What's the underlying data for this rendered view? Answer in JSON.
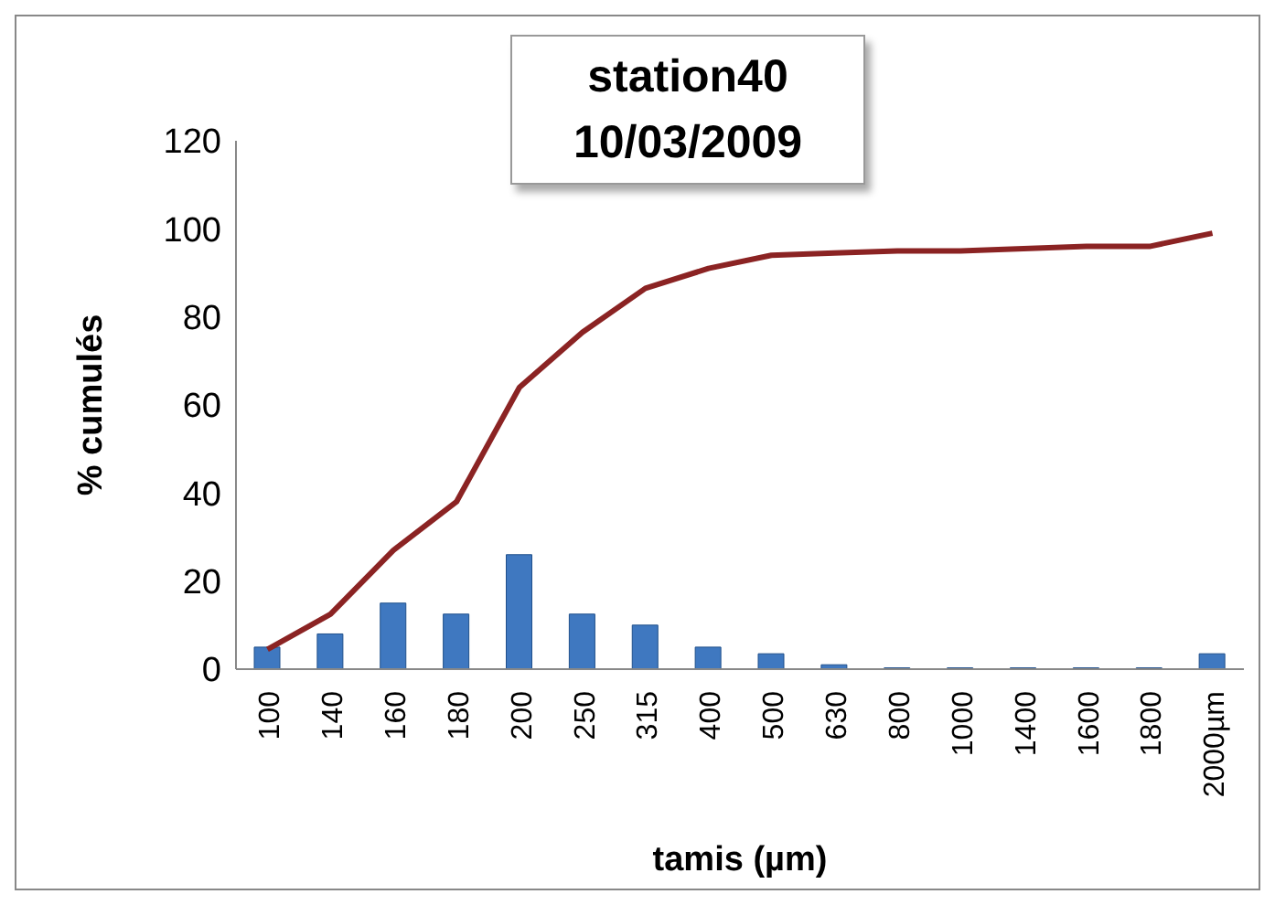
{
  "chart_data": {
    "type": "bar",
    "title": "station40",
    "subtitle": "10/03/2009",
    "xlabel": "tamis (µm)",
    "ylabel": "% cumulés",
    "categories": [
      "100",
      "140",
      "160",
      "180",
      "200",
      "250",
      "315",
      "400",
      "500",
      "630",
      "800",
      "1000",
      "1400",
      "1600",
      "1800",
      "2000µm"
    ],
    "series": [
      {
        "color": "#3f78c0",
        "values": [
          5,
          8,
          15,
          12.5,
          26,
          12.5,
          10,
          5,
          3.5,
          1,
          0.3,
          0.3,
          0.3,
          0.3,
          0.3,
          3.5
        ]
      },
      {
        "type": "line",
        "color": "#8b2323",
        "values": [
          4.5,
          12.5,
          27,
          38,
          64,
          76.5,
          86.5,
          91,
          94,
          94.5,
          95,
          95,
          95.5,
          96,
          96,
          99
        ]
      }
    ],
    "ylim": [
      0,
      120
    ],
    "yticks": [
      0,
      20,
      40,
      60,
      80,
      100,
      120
    ],
    "grid": false,
    "legend": false,
    "marker": "none"
  }
}
